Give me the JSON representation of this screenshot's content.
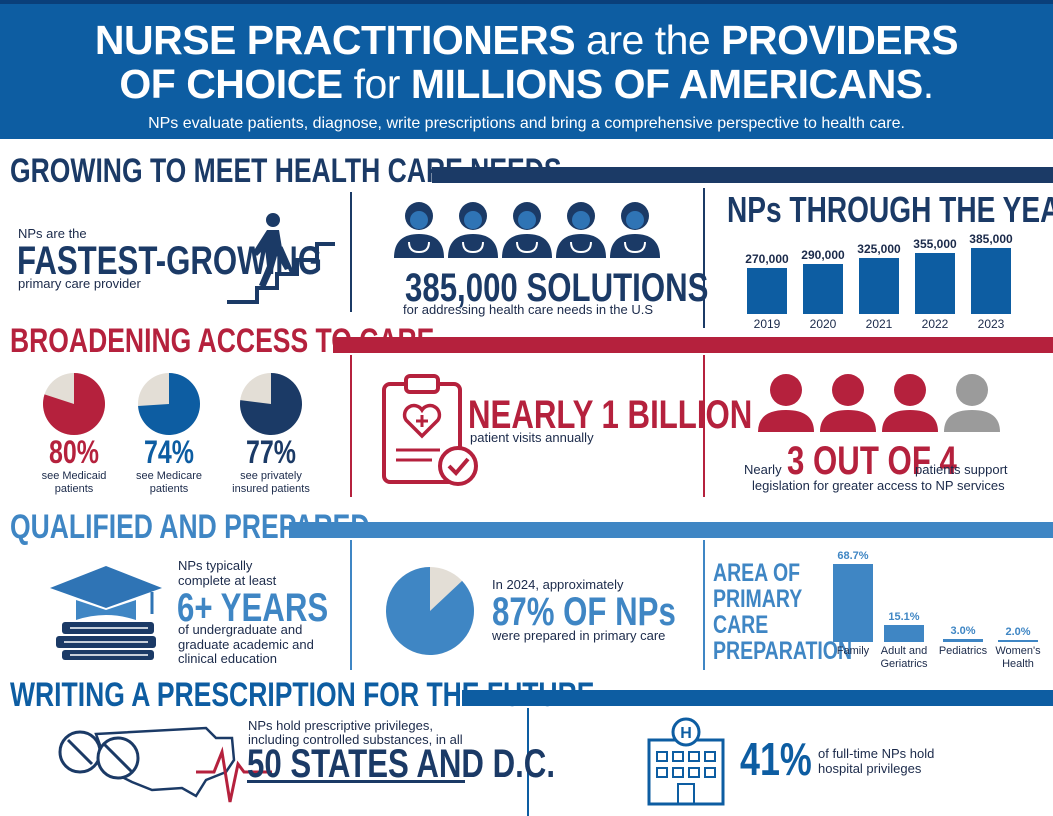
{
  "header": {
    "line1_bold": "NURSE PRACTITIONERS",
    "line1_light": "are the",
    "line1_bold2": "PROVIDERS",
    "line2_bold": "OF CHOICE",
    "line2_light": "for",
    "line2_bold2": "MILLIONS OF AMERICANS",
    "line2_end": ".",
    "subtitle": "NPs evaluate patients, diagnose, write prescriptions and bring a comprehensive perspective to health care."
  },
  "growing": {
    "title": "GROWING TO MEET HEALTH CARE NEEDS",
    "fastest_pre": "NPs are the",
    "fastest_big": "FASTEST-GROWING",
    "fastest_post": "primary care provider",
    "solutions_big": "385,000 SOLUTIONS",
    "solutions_post": "for addressing health care needs in the U.S",
    "years_title": "NPs THROUGH THE YEARS"
  },
  "chart_data": {
    "type": "bar",
    "title": "NPs THROUGH THE YEARS",
    "categories": [
      "2019",
      "2020",
      "2021",
      "2022",
      "2023"
    ],
    "values": [
      270000,
      290000,
      325000,
      355000,
      385000
    ],
    "value_labels": [
      "270,000",
      "290,000",
      "325,000",
      "355,000",
      "385,000"
    ],
    "ylim": [
      0,
      385000
    ]
  },
  "access": {
    "title": "BROADENING ACCESS TO CARE",
    "pies": [
      {
        "value": 80,
        "label": "80%",
        "caption1": "see Medicaid",
        "caption2": "patients",
        "color": "#b5213d"
      },
      {
        "value": 74,
        "label": "74%",
        "caption1": "see Medicare",
        "caption2": "patients",
        "color": "#0d5da2"
      },
      {
        "value": 77,
        "label": "77%",
        "caption1": "see privately",
        "caption2": "insured patients",
        "color": "#1b3a66"
      }
    ],
    "billion_big": "NEARLY 1 BILLION",
    "billion_post": "patient visits annually",
    "three_pre": "Nearly",
    "three_big": "3 OUT OF 4",
    "three_post": "patients support",
    "three_line2": "legislation for greater access to NP services"
  },
  "qualified": {
    "title": "QUALIFIED AND PREPARED",
    "years_pre1": "NPs typically",
    "years_pre2": "complete at least",
    "years_big": "6+ YEARS",
    "years_post1": "of undergraduate and",
    "years_post2": "graduate academic and",
    "years_post3": "clinical education",
    "pct_value": 87,
    "pct_pre": "In 2024, approximately",
    "pct_big": "87% OF NPs",
    "pct_post": "were prepared in primary care",
    "area_title": [
      "AREA OF",
      "PRIMARY",
      "CARE",
      "PREPARATION"
    ],
    "area_chart": {
      "type": "bar",
      "categories": [
        "Family",
        "Adult and Geriatrics",
        "Pediatrics",
        "Women's Health"
      ],
      "category_lines": [
        [
          "Family"
        ],
        [
          "Adult and",
          "Geriatrics"
        ],
        [
          "Pediatrics"
        ],
        [
          "Women's",
          "Health"
        ]
      ],
      "values": [
        68.7,
        15.1,
        3.0,
        2.0
      ],
      "value_labels": [
        "68.7%",
        "15.1%",
        "3.0%",
        "2.0%"
      ]
    }
  },
  "future": {
    "title": "WRITING A PRESCRIPTION FOR THE FUTURE",
    "states_pre1": "NPs hold prescriptive privileges,",
    "states_pre2": "including controlled substances, in all",
    "states_big": "50 STATES AND D.C.",
    "hosp_big": "41%",
    "hosp_post1": "of full-time NPs hold",
    "hosp_post2": "hospital privileges"
  },
  "colors": {
    "navy": "#1b3a66",
    "blue": "#0d5da2",
    "light_blue": "#3f86c4",
    "red": "#b5213d",
    "gray": "#9b9b9b"
  }
}
